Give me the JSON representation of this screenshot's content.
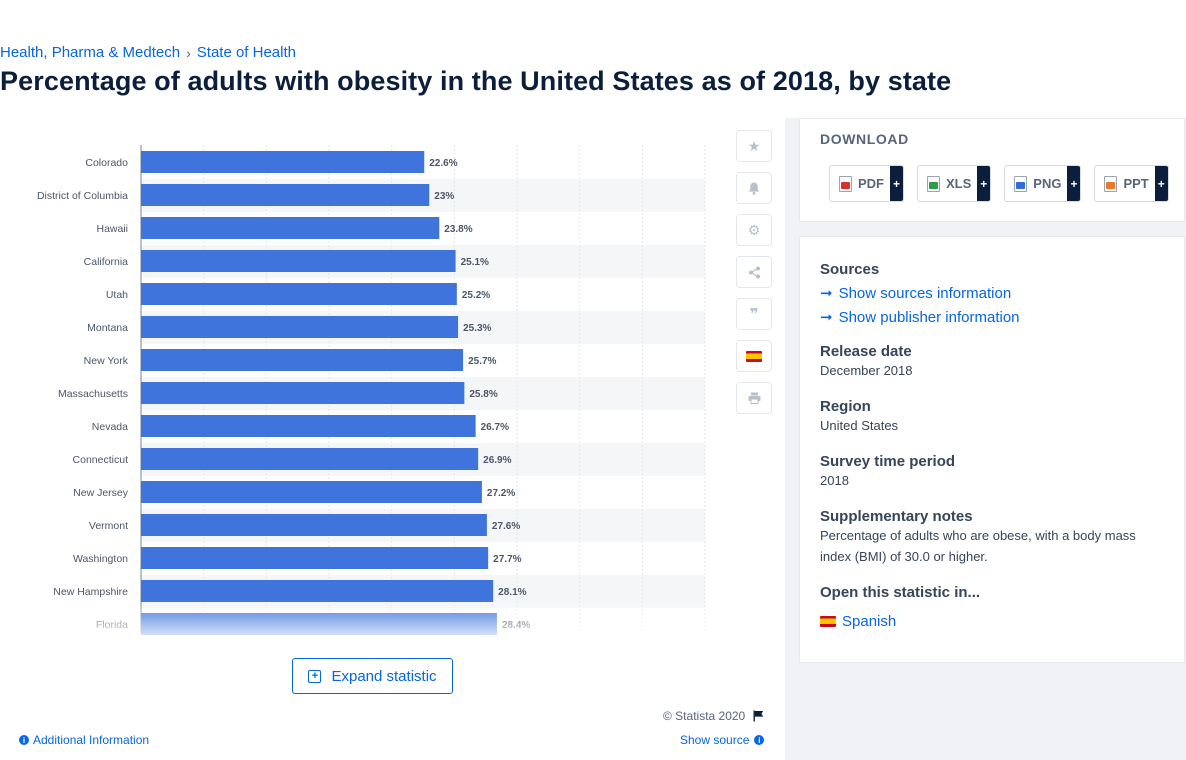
{
  "breadcrumb": {
    "parent": "Health, Pharma & Medtech",
    "separator": "›",
    "current": "State of Health"
  },
  "title": "Percentage of adults with obesity in the United States as of 2018, by state",
  "toolbar": {
    "icons": [
      "star-icon",
      "bell-icon",
      "gear-icon",
      "share-icon",
      "quote-icon",
      "flag-es-icon",
      "print-icon"
    ]
  },
  "chart_data": {
    "type": "bar",
    "orientation": "horizontal",
    "categories": [
      "Colorado",
      "District of Columbia",
      "Hawaii",
      "California",
      "Utah",
      "Montana",
      "New York",
      "Massachusetts",
      "Nevada",
      "Connecticut",
      "New Jersey",
      "Vermont",
      "Washington",
      "New Hampshire",
      "Florida"
    ],
    "values": [
      22.6,
      23,
      23.8,
      25.1,
      25.2,
      25.3,
      25.7,
      25.8,
      26.7,
      26.9,
      27.2,
      27.6,
      27.7,
      28.1,
      28.4
    ],
    "value_labels": [
      "22.6%",
      "23%",
      "23.8%",
      "25.1%",
      "25.2%",
      "25.3%",
      "25.7%",
      "25.8%",
      "26.7%",
      "26.9%",
      "27.2%",
      "27.6%",
      "27.7%",
      "28.1%",
      "28.4%"
    ],
    "xlim": [
      0,
      45
    ],
    "grid": true,
    "bar_color": "#3e74dc"
  },
  "expand_label": "Expand statistic",
  "copyright": "© Statista 2020",
  "additional_info": "Additional Information",
  "show_source": "Show source",
  "download": {
    "title": "DOWNLOAD",
    "buttons": [
      {
        "label": "PDF",
        "plus": "+",
        "color": "#d9322d"
      },
      {
        "label": "XLS",
        "plus": "+",
        "color": "#2f9c4a"
      },
      {
        "label": "PNG",
        "plus": "+",
        "color": "#2f6fd6"
      },
      {
        "label": "PPT",
        "plus": "+",
        "color": "#e8792a"
      }
    ]
  },
  "info": {
    "sources_h": "Sources",
    "sources_link": "Show sources information",
    "publisher_link": "Show publisher information",
    "release_h": "Release date",
    "release_v": "December 2018",
    "region_h": "Region",
    "region_v": "United States",
    "period_h": "Survey time period",
    "period_v": "2018",
    "notes_h": "Supplementary notes",
    "notes_v": "Percentage of adults who are obese, with a body mass index (BMI) of 30.0 or higher.",
    "open_h": "Open this statistic in...",
    "open_lang": "Spanish"
  }
}
